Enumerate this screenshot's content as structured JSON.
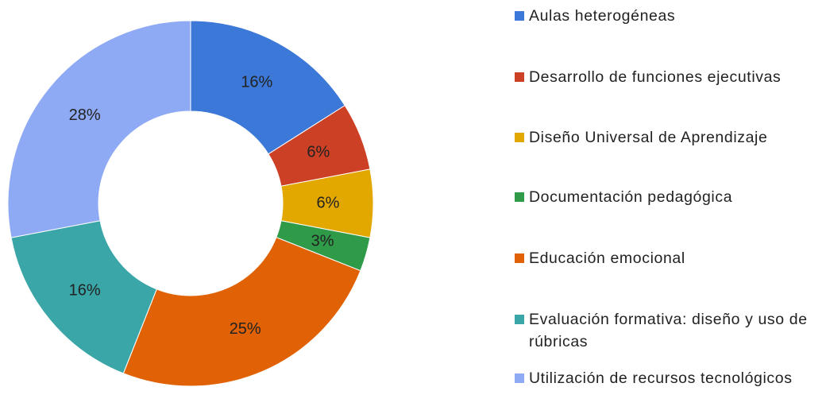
{
  "chart_data": {
    "type": "pie",
    "series": [
      {
        "name": "Aulas heterogéneas",
        "color": "#3c78d8",
        "values": [
          16
        ],
        "value_labels": [
          "16%"
        ]
      },
      {
        "name": "Desarrollo de funciones ejecutivas",
        "color": "#cc4125",
        "values": [
          6
        ],
        "value_labels": [
          "6%"
        ]
      },
      {
        "name": "Diseño Universal de Aprendizaje",
        "color": "#e2a800",
        "values": [
          6
        ],
        "value_labels": [
          "6%"
        ]
      },
      {
        "name": "Documentación pedagógica",
        "color": "#2f9a48",
        "values": [
          3
        ],
        "value_labels": [
          "3%"
        ]
      },
      {
        "name": "Educación emocional",
        "color": "#e06205",
        "values": [
          25
        ],
        "value_labels": [
          "25%"
        ]
      },
      {
        "name": "Evaluación formativa: diseño y uso de rúbricas",
        "color": "#3aa6a8",
        "values": [
          16
        ],
        "value_labels": [
          "16%"
        ]
      },
      {
        "name": "Utilización de recursos tecnológicos",
        "color": "#8eaaf5",
        "values": [
          28
        ],
        "value_labels": [
          "28%"
        ]
      }
    ]
  }
}
